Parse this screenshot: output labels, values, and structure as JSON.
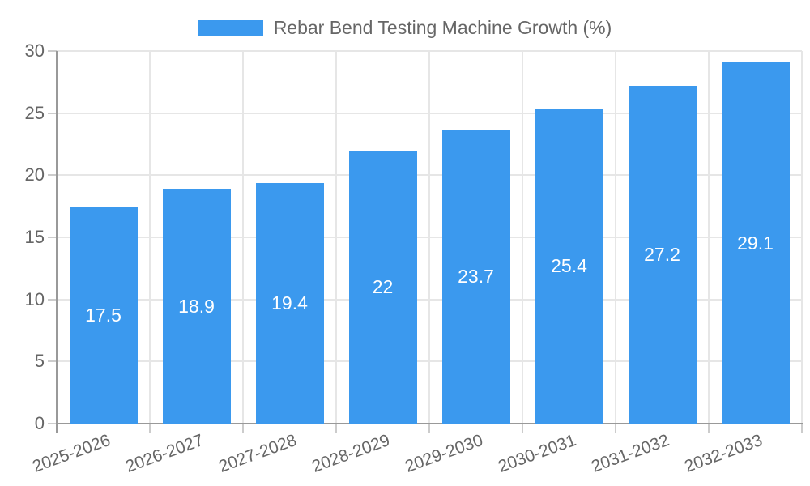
{
  "chart_data": {
    "type": "bar",
    "title": "Rebar Bend Testing Machine Growth (%)",
    "categories": [
      "2025-2026",
      "2026-2027",
      "2027-2028",
      "2028-2029",
      "2029-2030",
      "2030-2031",
      "2031-2032",
      "2032-2033"
    ],
    "values": [
      17.5,
      18.9,
      19.4,
      22,
      23.7,
      25.4,
      27.2,
      29.1
    ],
    "value_labels": [
      "17.5",
      "18.9",
      "19.4",
      "22",
      "23.7",
      "25.4",
      "27.2",
      "29.1"
    ],
    "yticks": [
      0,
      5,
      10,
      15,
      20,
      25,
      30
    ],
    "ylim": [
      0,
      30
    ],
    "xlabel": "",
    "ylabel": "",
    "grid": true,
    "legend_position": "top-center",
    "bar_color": "#3b99ee",
    "value_label_color": "#ffffff",
    "axis_text_color": "#666666",
    "gridline_color": "#e6e6e6",
    "axis_line_color": "#999999"
  }
}
